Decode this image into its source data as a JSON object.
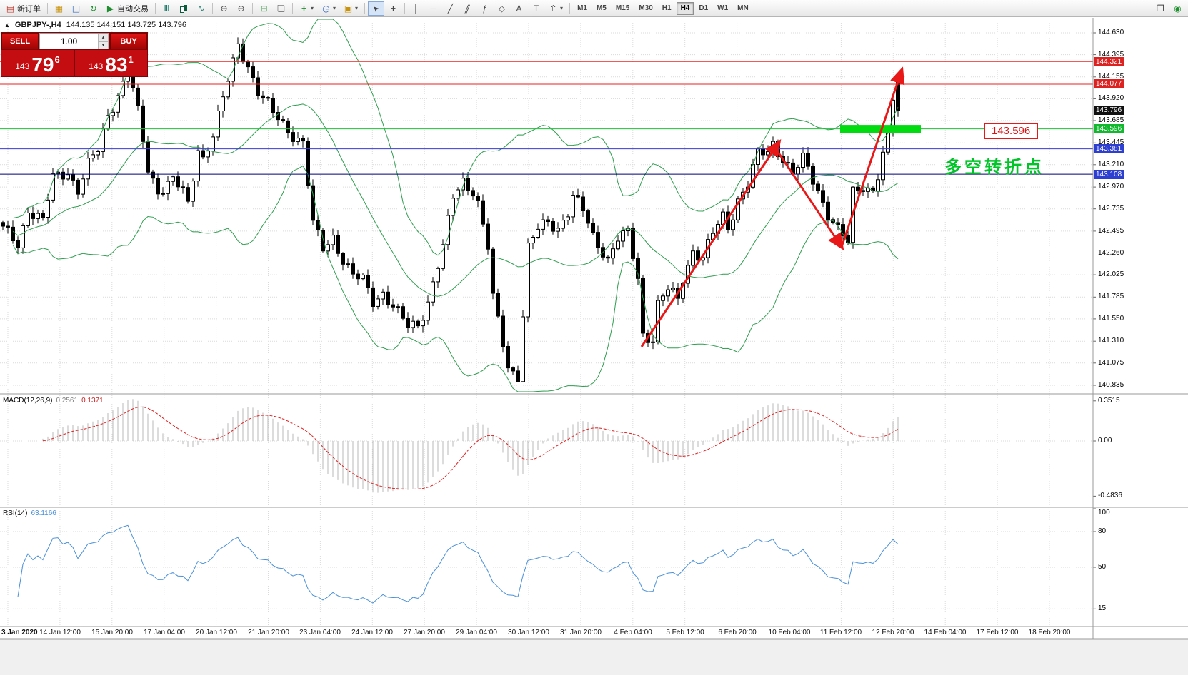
{
  "icons": {
    "new_order": "▤",
    "chart_window": "▦",
    "market_depth": "◫",
    "refresh": "↻",
    "autotrading": "▶",
    "bar_chart": "Ⅲ",
    "line_chart": "∿",
    "zoom_in": "⊕",
    "zoom_out": "⊖",
    "grid": "⊞",
    "windows": "❏",
    "indicators": "+",
    "periods": "◷",
    "templates": "▣",
    "cursor": "➤",
    "crosshair": "+",
    "vertical_line": "│",
    "horizontal_line": "─",
    "trendline": "╱",
    "channel": "∥",
    "fibonacci": "ƒ",
    "shapes": "◇",
    "text": "A",
    "text_label": "T",
    "arrows": "⇧",
    "caret": "▾",
    "chart_profile": "❐",
    "community": "◉",
    "spin_up": "▴",
    "spin_down": "▾",
    "title_marker": "▲"
  },
  "toolbar": {
    "new_order_label": "新订单",
    "autotrading_label": "自动交易",
    "timeframes": [
      "M1",
      "M5",
      "M15",
      "M30",
      "H1",
      "H4",
      "D1",
      "W1",
      "MN"
    ],
    "active_timeframe": "H4"
  },
  "chart": {
    "title": "GBPJPY-,H4",
    "ohlc": "144.135 144.151 143.725 143.796",
    "trade_panel": {
      "sell_label": "SELL",
      "buy_label": "BUY",
      "volume": "1.00",
      "sell_price_prefix": "143",
      "sell_price_big": "79",
      "sell_price_sup": "6",
      "buy_price_prefix": "143",
      "buy_price_big": "83",
      "buy_price_sup": "1"
    },
    "annotations": {
      "level_label": "143.596",
      "turning_point": "多空转折点"
    },
    "price_axis": [
      "144.630",
      "144.395",
      "144.155",
      "143.920",
      "143.685",
      "143.445",
      "143.210",
      "142.970",
      "142.735",
      "142.495",
      "142.260",
      "142.025",
      "141.785",
      "141.550",
      "141.310",
      "141.075",
      "140.835"
    ],
    "price_tags": [
      {
        "value": "144.321",
        "bg": "#dd2222"
      },
      {
        "value": "144.077",
        "bg": "#dd2222"
      },
      {
        "value": "143.796",
        "bg": "#111111"
      },
      {
        "value": "143.596",
        "bg": "#12b82e"
      },
      {
        "value": "143.381",
        "bg": "#2d3fd0"
      },
      {
        "value": "143.108",
        "bg": "#2d3fd0"
      }
    ],
    "levels": [
      {
        "value": 144.321,
        "color": "#ee2222"
      },
      {
        "value": 144.077,
        "color": "#ee2222"
      },
      {
        "value": 143.596,
        "color": "#1fbf3a"
      },
      {
        "value": 143.381,
        "color": "#3a3ad6"
      },
      {
        "value": 143.108,
        "color": "#00007a"
      }
    ],
    "time_axis": [
      "3 Jan 2020",
      "14 Jan 12:00",
      "15 Jan 20:00",
      "17 Jan 04:00",
      "20 Jan 12:00",
      "21 Jan 20:00",
      "23 Jan 04:00",
      "24 Jan 12:00",
      "27 Jan 20:00",
      "29 Jan 04:00",
      "30 Jan 12:00",
      "31 Jan 20:00",
      "4 Feb 04:00",
      "5 Feb 12:00",
      "6 Feb 20:00",
      "10 Feb 04:00",
      "11 Feb 12:00",
      "12 Feb 20:00",
      "14 Feb 04:00",
      "17 Feb 12:00",
      "18 Feb 20:00"
    ]
  },
  "macd": {
    "name": "MACD(12,26,9)",
    "value_main": "0.2561",
    "value_signal": "0.1371",
    "scale": [
      {
        "label": "0.3515",
        "value": 0.3515
      },
      {
        "label": "0.00",
        "value": 0
      },
      {
        "label": "-0.4836",
        "value": -0.4836
      }
    ]
  },
  "rsi": {
    "name": "RSI(14)",
    "value": "63.1166",
    "scale": [
      {
        "label": "100",
        "value": 100
      },
      {
        "label": "80",
        "value": 80
      },
      {
        "label": "50",
        "value": 50
      },
      {
        "label": "15",
        "value": 15
      }
    ]
  },
  "chart_data": {
    "type": "candlestick",
    "symbol": "GBPJPY-",
    "timeframe": "H4",
    "last_ohlc": {
      "open": 144.135,
      "high": 144.151,
      "low": 143.725,
      "close": 143.796
    },
    "bid": 143.796,
    "ask": 143.831,
    "key_levels": [
      144.321,
      144.077,
      143.596,
      143.381,
      143.108
    ],
    "price_axis_range": [
      140.835,
      144.63
    ],
    "price_path": [
      [
        0,
        142.5
      ],
      [
        3,
        142.35
      ],
      [
        5,
        142.75
      ],
      [
        8,
        142.6
      ],
      [
        10,
        143.05
      ],
      [
        13,
        143.15
      ],
      [
        15,
        142.95
      ],
      [
        17,
        143.2
      ],
      [
        19,
        143.35
      ],
      [
        21,
        143.75
      ],
      [
        24,
        144.1
      ],
      [
        25,
        144.25
      ],
      [
        27,
        143.75
      ],
      [
        29,
        143.15
      ],
      [
        31,
        142.95
      ],
      [
        34,
        143.05
      ],
      [
        36,
        142.9
      ],
      [
        37,
        142.75
      ],
      [
        39,
        143.4
      ],
      [
        40,
        143.3
      ],
      [
        42,
        143.55
      ],
      [
        44,
        143.9
      ],
      [
        46,
        144.3
      ],
      [
        47,
        144.5
      ],
      [
        49,
        144.3
      ],
      [
        51,
        144.0
      ],
      [
        54,
        143.75
      ],
      [
        56,
        143.65
      ],
      [
        58,
        143.55
      ],
      [
        60,
        143.45
      ],
      [
        62,
        142.55
      ],
      [
        64,
        142.3
      ],
      [
        66,
        142.45
      ],
      [
        68,
        142.2
      ],
      [
        70,
        142.0
      ],
      [
        72,
        141.95
      ],
      [
        74,
        141.75
      ],
      [
        76,
        141.85
      ],
      [
        79,
        141.6
      ],
      [
        81,
        141.45
      ],
      [
        83,
        141.5
      ],
      [
        85,
        141.75
      ],
      [
        86,
        141.95
      ],
      [
        88,
        142.3
      ],
      [
        90,
        142.85
      ],
      [
        92,
        143.05
      ],
      [
        94,
        142.95
      ],
      [
        95,
        142.8
      ],
      [
        97,
        142.3
      ],
      [
        98,
        141.75
      ],
      [
        100,
        141.3
      ],
      [
        101,
        141.05
      ],
      [
        103,
        140.95
      ],
      [
        104,
        141.6
      ],
      [
        105,
        142.3
      ],
      [
        107,
        142.5
      ],
      [
        109,
        142.6
      ],
      [
        111,
        142.55
      ],
      [
        113,
        142.7
      ],
      [
        114,
        142.85
      ],
      [
        116,
        142.7
      ],
      [
        118,
        142.45
      ],
      [
        120,
        142.3
      ],
      [
        121,
        142.2
      ],
      [
        123,
        142.4
      ],
      [
        125,
        142.45
      ],
      [
        127,
        142.0
      ],
      [
        128,
        141.4
      ],
      [
        130,
        141.35
      ],
      [
        131,
        141.7
      ],
      [
        133,
        141.85
      ],
      [
        135,
        141.75
      ],
      [
        136,
        142.0
      ],
      [
        138,
        142.3
      ],
      [
        140,
        142.2
      ],
      [
        142,
        142.45
      ],
      [
        144,
        142.65
      ],
      [
        145,
        142.55
      ],
      [
        147,
        142.85
      ],
      [
        149,
        143.0
      ],
      [
        151,
        143.3
      ],
      [
        153,
        143.35
      ],
      [
        154,
        143.45
      ],
      [
        156,
        143.3
      ],
      [
        158,
        143.1
      ],
      [
        160,
        143.25
      ],
      [
        161,
        143.15
      ],
      [
        163,
        142.95
      ],
      [
        165,
        142.7
      ],
      [
        167,
        142.5
      ],
      [
        169,
        142.35
      ],
      [
        170,
        142.9
      ],
      [
        172,
        143.0
      ],
      [
        174,
        142.95
      ],
      [
        175,
        143.1
      ],
      [
        177,
        143.5
      ],
      [
        178,
        143.9
      ],
      [
        179,
        144.1
      ]
    ]
  }
}
